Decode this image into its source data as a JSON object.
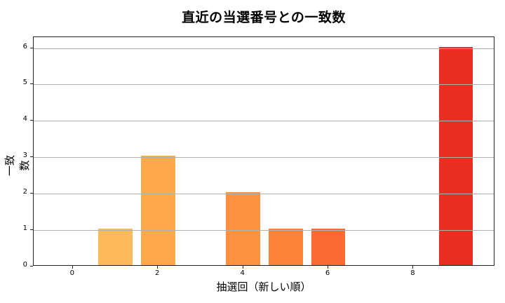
{
  "chart_data": {
    "type": "bar",
    "title": "直近の当選番号との一致数",
    "xlabel": "抽選回（新しい順）",
    "ylabel": "一致数",
    "x": [
      0,
      1,
      2,
      3,
      4,
      5,
      6,
      7,
      8,
      9
    ],
    "values": [
      0,
      1,
      3,
      0,
      2,
      1,
      1,
      0,
      0,
      6
    ],
    "colors": [
      "#ffd06a",
      "#feb95a",
      "#feaa4a",
      "#fd9c42",
      "#fd9340",
      "#fc8338",
      "#fb6a31",
      "#f45328",
      "#ee4124",
      "#e92e22"
    ],
    "xticks": [
      0,
      2,
      4,
      6,
      8
    ],
    "yticks": [
      0,
      1,
      2,
      3,
      4,
      5,
      6
    ],
    "xlim": [
      -0.92,
      9.92
    ],
    "ylim": [
      0,
      6.3
    ],
    "grid": {
      "axis": "y",
      "on": true,
      "color": "#b0b0b0"
    },
    "legend": null
  }
}
